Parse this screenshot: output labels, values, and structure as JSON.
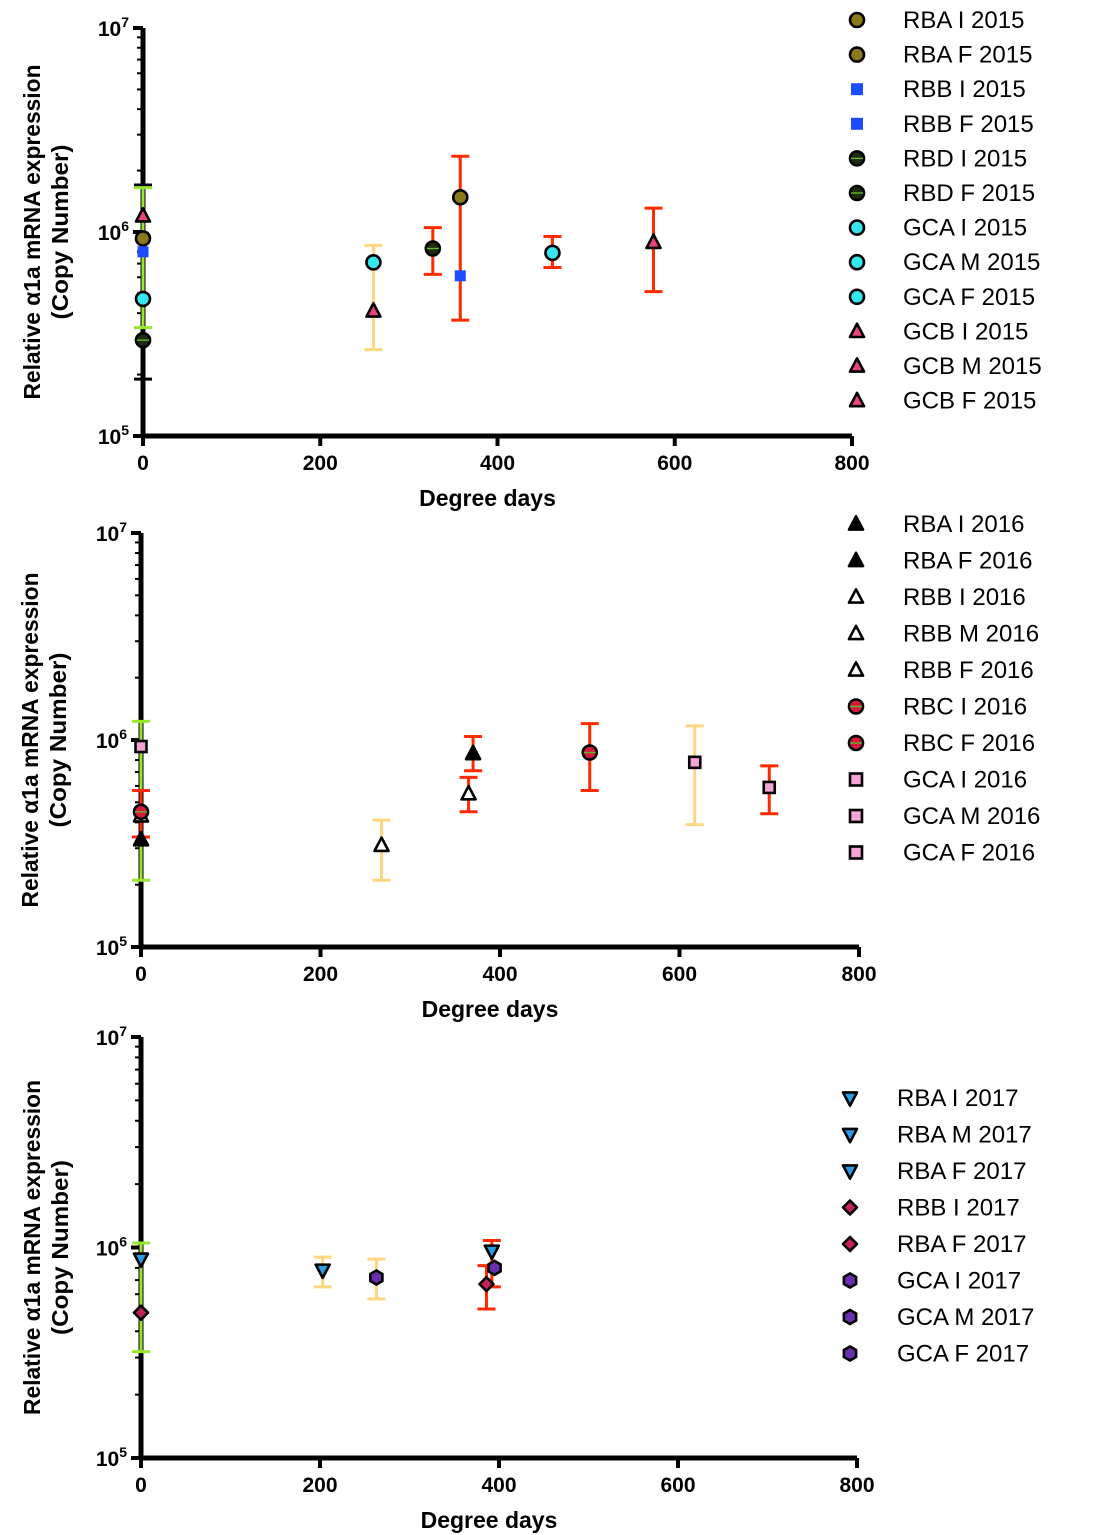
{
  "chart_data": [
    {
      "type": "scatter",
      "log_y": true,
      "xlabel": "Degree days",
      "ylabel": "Relative α1a mRNA expression",
      "ylabel2": "(Copy Number)",
      "xlim": [
        0,
        800
      ],
      "ylim": [
        100000,
        10000000
      ],
      "xticks": [
        "0",
        "200",
        "400",
        "600",
        "800"
      ],
      "yticks": [
        {
          "base": "10",
          "exp": "5"
        },
        {
          "base": "10",
          "exp": "6"
        },
        {
          "base": "10",
          "exp": "7"
        }
      ],
      "grid": false,
      "legend_position": "right",
      "errorbars": [
        {
          "x": 0,
          "low": 190000,
          "high": 1700000,
          "color": "#000000"
        },
        {
          "x": 0,
          "low": 340000,
          "high": 1650000,
          "color": "#99e62e"
        },
        {
          "x": 260,
          "low": 265000,
          "high": 860000,
          "color": "#ffd680"
        },
        {
          "x": 327,
          "low": 620000,
          "high": 1050000,
          "color": "#ff2a00"
        },
        {
          "x": 358,
          "low": 370000,
          "high": 2350000,
          "color": "#ff2a00"
        },
        {
          "x": 462,
          "low": 670000,
          "high": 950000,
          "color": "#ff2a00"
        },
        {
          "x": 576,
          "low": 510000,
          "high": 1310000,
          "color": "#ff2a00"
        }
      ],
      "series": [
        {
          "name": "RBA I 2015",
          "marker": "circle",
          "fill": "#8c7a1a",
          "stroke": "#000000",
          "x": [],
          "y": []
        },
        {
          "name": "RBA F 2015",
          "marker": "circle",
          "fill": "#8c7a1a",
          "stroke": "#000000",
          "x": [
            0,
            358
          ],
          "y": [
            930000,
            1480000
          ]
        },
        {
          "name": "RBB I 2015",
          "marker": "square",
          "fill": "#1d4bff",
          "stroke": "none",
          "x": [
            0
          ],
          "y": [
            800000
          ]
        },
        {
          "name": "RBB F 2015",
          "marker": "square",
          "fill": "#1d4bff",
          "stroke": "none",
          "x": [
            358
          ],
          "y": [
            610000
          ]
        },
        {
          "name": "RBD I 2015",
          "marker": "circle-split",
          "fill": "#1f2a12",
          "stroke": "#000000",
          "x": [
            0
          ],
          "y": [
            295000
          ]
        },
        {
          "name": "RBD F 2015",
          "marker": "circle-split",
          "fill": "#1f2a12",
          "stroke": "#000000",
          "x": [
            327
          ],
          "y": [
            830000
          ]
        },
        {
          "name": "GCA I 2015",
          "marker": "circle",
          "fill": "#33e6f0",
          "stroke": "#000000",
          "x": [
            0
          ],
          "y": [
            470000
          ]
        },
        {
          "name": "GCA M 2015",
          "marker": "circle",
          "fill": "#33e6f0",
          "stroke": "#000000",
          "x": [
            260
          ],
          "y": [
            710000
          ]
        },
        {
          "name": "GCA F 2015",
          "marker": "circle",
          "fill": "#33e6f0",
          "stroke": "#000000",
          "x": [
            462
          ],
          "y": [
            790000
          ]
        },
        {
          "name": "GCB I 2015",
          "marker": "triangle",
          "fill": "#e8457a",
          "stroke": "#000000",
          "x": [
            0
          ],
          "y": [
            1200000
          ]
        },
        {
          "name": "GCB M 2015",
          "marker": "triangle",
          "fill": "#e8457a",
          "stroke": "#000000",
          "x": [
            260
          ],
          "y": [
            410000
          ]
        },
        {
          "name": "GCB F 2015",
          "marker": "triangle",
          "fill": "#e8457a",
          "stroke": "#000000",
          "x": [
            576
          ],
          "y": [
            890000
          ]
        }
      ]
    },
    {
      "type": "scatter",
      "log_y": true,
      "xlabel": "Degree days",
      "ylabel": "Relative α1a mRNA expression",
      "ylabel2": "(Copy Number)",
      "xlim": [
        0,
        800
      ],
      "ylim": [
        100000,
        10000000
      ],
      "xticks": [
        "0",
        "200",
        "400",
        "600",
        "800"
      ],
      "yticks": [
        {
          "base": "10",
          "exp": "5"
        },
        {
          "base": "10",
          "exp": "6"
        },
        {
          "base": "10",
          "exp": "7"
        }
      ],
      "grid": false,
      "legend_position": "right",
      "errorbars": [
        {
          "x": 0,
          "low": 210000,
          "high": 1230000,
          "color": "#99e62e"
        },
        {
          "x": 0,
          "low": 340000,
          "high": 570000,
          "color": "#ff2a00"
        },
        {
          "x": 268,
          "low": 210000,
          "high": 410000,
          "color": "#ffd680"
        },
        {
          "x": 365,
          "low": 450000,
          "high": 660000,
          "color": "#ff2a00"
        },
        {
          "x": 370,
          "low": 710000,
          "high": 1040000,
          "color": "#ff2a00"
        },
        {
          "x": 500,
          "low": 570000,
          "high": 1200000,
          "color": "#ff2a00"
        },
        {
          "x": 617,
          "low": 390000,
          "high": 1170000,
          "color": "#ffd680"
        },
        {
          "x": 700,
          "low": 440000,
          "high": 750000,
          "color": "#ff2a00"
        }
      ],
      "series": [
        {
          "name": "RBA I 2016",
          "marker": "triangle",
          "fill": "#000000",
          "stroke": "#000000",
          "x": [
            0
          ],
          "y": [
            330000
          ]
        },
        {
          "name": "RBA F 2016",
          "marker": "triangle",
          "fill": "#000000",
          "stroke": "#000000",
          "x": [
            370
          ],
          "y": [
            860000
          ]
        },
        {
          "name": "RBB I 2016",
          "marker": "triangle",
          "fill": "#ffffff",
          "stroke": "#000000",
          "x": [
            0
          ],
          "y": [
            430000
          ]
        },
        {
          "name": "RBB M 2016",
          "marker": "triangle",
          "fill": "#ffffff",
          "stroke": "#000000",
          "x": [
            268
          ],
          "y": [
            310000
          ]
        },
        {
          "name": "RBB F 2016",
          "marker": "triangle",
          "fill": "#ffffff",
          "stroke": "#000000",
          "x": [
            365
          ],
          "y": [
            550000
          ]
        },
        {
          "name": "RBC I 2016",
          "marker": "circle-split",
          "fill": "#d81b3c",
          "stroke": "#000000",
          "x": [
            0
          ],
          "y": [
            450000
          ]
        },
        {
          "name": "RBC F 2016",
          "marker": "circle-split",
          "fill": "#d81b3c",
          "stroke": "#000000",
          "x": [
            500
          ],
          "y": [
            870000
          ]
        },
        {
          "name": "GCA I 2016",
          "marker": "square",
          "fill": "#f6a3d8",
          "stroke": "#000000",
          "x": [
            0
          ],
          "y": [
            930000
          ]
        },
        {
          "name": "GCA M 2016",
          "marker": "square",
          "fill": "#f6a3d8",
          "stroke": "#000000",
          "x": [
            617
          ],
          "y": [
            780000
          ]
        },
        {
          "name": "GCA F 2016",
          "marker": "square",
          "fill": "#f6a3d8",
          "stroke": "#000000",
          "x": [
            700
          ],
          "y": [
            590000
          ]
        }
      ]
    },
    {
      "type": "scatter",
      "log_y": true,
      "xlabel": "Degree days",
      "ylabel": "Relative α1a mRNA expression",
      "ylabel2": "(Copy Number)",
      "xlim": [
        0,
        800
      ],
      "ylim": [
        100000,
        10000000
      ],
      "xticks": [
        "0",
        "200",
        "400",
        "600",
        "800"
      ],
      "yticks": [
        {
          "base": "10",
          "exp": "5"
        },
        {
          "base": "10",
          "exp": "6"
        },
        {
          "base": "10",
          "exp": "7"
        }
      ],
      "grid": false,
      "legend_position": "right",
      "errorbars": [
        {
          "x": 0,
          "low": 320000,
          "high": 1050000,
          "color": "#99e62e"
        },
        {
          "x": 203,
          "low": 650000,
          "high": 900000,
          "color": "#ffd680"
        },
        {
          "x": 263,
          "low": 570000,
          "high": 880000,
          "color": "#ffd680"
        },
        {
          "x": 386,
          "low": 510000,
          "high": 820000,
          "color": "#ff2a00"
        },
        {
          "x": 392,
          "low": 650000,
          "high": 1080000,
          "color": "#ff2a00"
        }
      ],
      "series": [
        {
          "name": "RBA I 2017",
          "marker": "triangle-down",
          "fill": "#2b9be6",
          "stroke": "#000000",
          "x": [
            0
          ],
          "y": [
            880000
          ]
        },
        {
          "name": "RBA M 2017",
          "marker": "triangle-down",
          "fill": "#2b9be6",
          "stroke": "#000000",
          "x": [
            203
          ],
          "y": [
            780000
          ]
        },
        {
          "name": "RBA F 2017",
          "marker": "triangle-down",
          "fill": "#2b9be6",
          "stroke": "#000000",
          "x": [
            392
          ],
          "y": [
            960000
          ]
        },
        {
          "name": "RBB I 2017",
          "marker": "diamond",
          "fill": "#c2245a",
          "stroke": "#000000",
          "x": [
            0
          ],
          "y": [
            490000
          ]
        },
        {
          "name": "RBA F 2017",
          "marker": "diamond",
          "fill": "#c2245a",
          "stroke": "#000000",
          "x": [
            386
          ],
          "y": [
            670000
          ]
        },
        {
          "name": "GCA I 2017",
          "marker": "hexagon",
          "fill": "#6a2fb0",
          "stroke": "#000000",
          "x": [],
          "y": []
        },
        {
          "name": "GCA M 2017",
          "marker": "hexagon",
          "fill": "#6a2fb0",
          "stroke": "#000000",
          "x": [
            263
          ],
          "y": [
            720000
          ]
        },
        {
          "name": "GCA F 2017",
          "marker": "hexagon",
          "fill": "#6a2fb0",
          "stroke": "#000000",
          "x": [
            395
          ],
          "y": [
            800000
          ]
        }
      ]
    }
  ]
}
